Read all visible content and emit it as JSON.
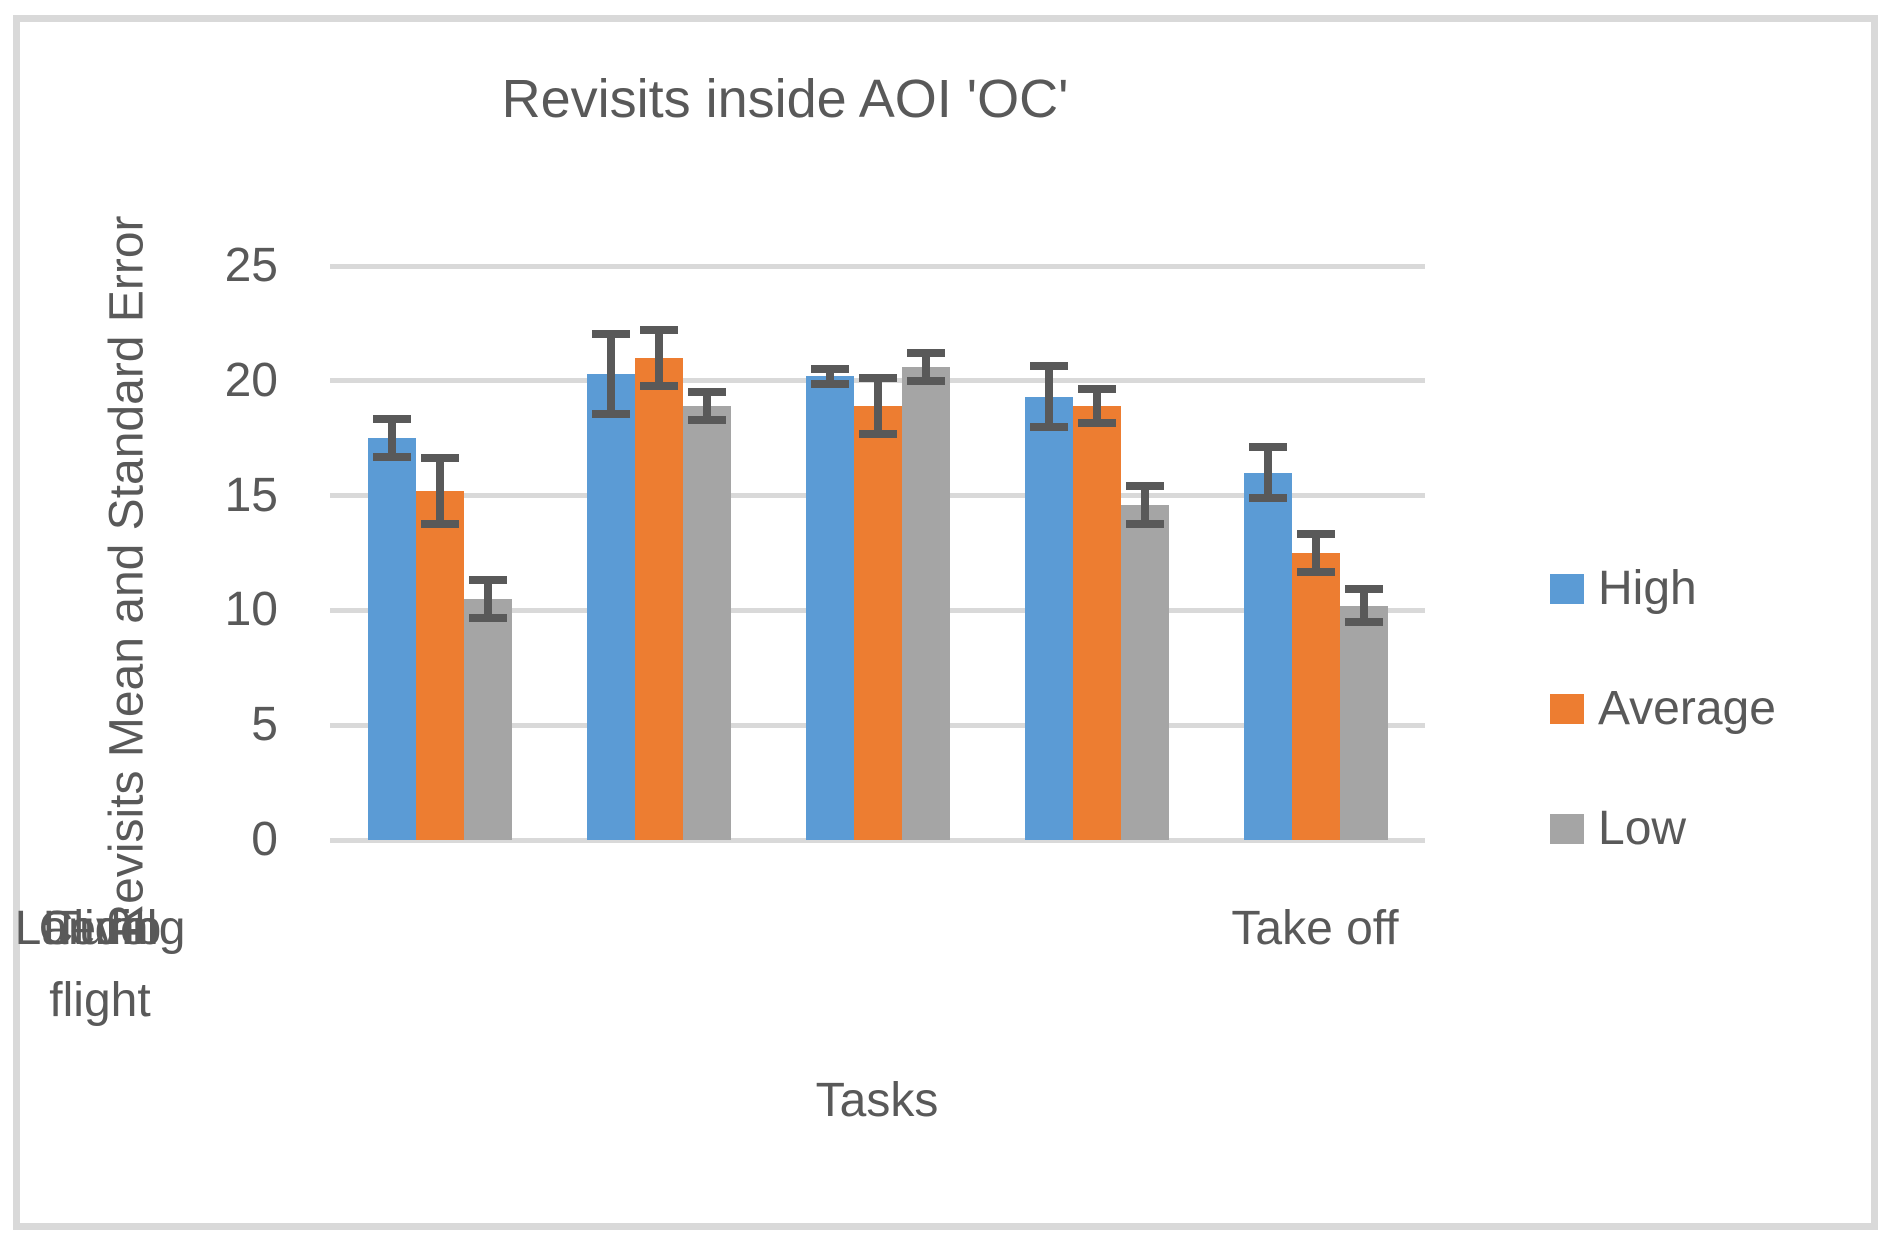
{
  "chart_data": {
    "type": "bar",
    "title": "Revisits inside AOI 'OC'",
    "xlabel": "Tasks",
    "ylabel": "Revisits Mean and Standard Error",
    "ylim": [
      0,
      25
    ],
    "yticks": [
      0,
      5,
      10,
      15,
      20,
      25
    ],
    "grid": true,
    "legend_position": "right",
    "categories": [
      "Take off",
      "Climb",
      "Level flight",
      "Turn",
      "Landing"
    ],
    "series": [
      {
        "name": "High",
        "color": "#5B9BD5",
        "values": [
          17.5,
          20.3,
          20.2,
          19.3,
          16.0
        ],
        "errors": [
          1.0,
          1.9,
          0.5,
          1.5,
          1.3
        ]
      },
      {
        "name": "Average",
        "color": "#ED7D31",
        "values": [
          15.2,
          21.0,
          18.9,
          18.9,
          12.5
        ],
        "errors": [
          1.6,
          1.4,
          1.4,
          0.9,
          1.0
        ]
      },
      {
        "name": "Low",
        "color": "#A5A5A5",
        "values": [
          10.5,
          18.9,
          20.6,
          14.6,
          10.2
        ],
        "errors": [
          1.0,
          0.8,
          0.8,
          1.0,
          0.9
        ]
      }
    ],
    "error_bar_color": "#595959",
    "gridline_color": "#D9D9D9",
    "text_color": "#595959",
    "border_color": "#D9D9D9"
  }
}
